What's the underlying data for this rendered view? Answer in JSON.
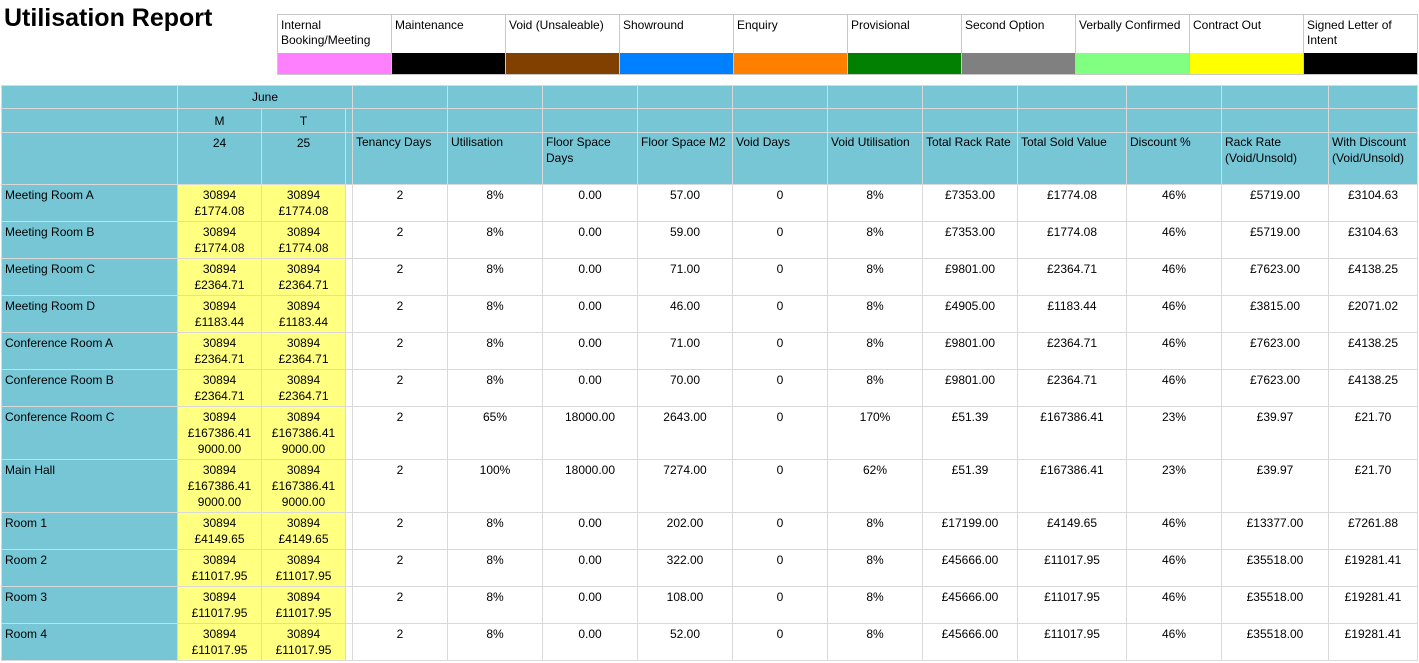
{
  "title": "Utilisation Report",
  "legend": [
    {
      "label": "Internal Booking/Meeting",
      "color": "#ff80ff"
    },
    {
      "label": "Maintenance",
      "color": "#000000"
    },
    {
      "label": "Void (Unsaleable)",
      "color": "#804000"
    },
    {
      "label": "Showround",
      "color": "#0080ff"
    },
    {
      "label": "Enquiry",
      "color": "#ff8000"
    },
    {
      "label": "Provisional",
      "color": "#008000"
    },
    {
      "label": "Second Option",
      "color": "#808080"
    },
    {
      "label": "Verbally Confirmed",
      "color": "#80ff80"
    },
    {
      "label": "Contract Out",
      "color": "#ffff00"
    },
    {
      "label": "Signed Letter of Intent",
      "color": "#000000"
    }
  ],
  "header": {
    "month": "June",
    "days": [
      {
        "weekday": "M",
        "date": "24"
      },
      {
        "weekday": "T",
        "date": "25"
      }
    ],
    "columns": [
      "Tenancy Days",
      "Utilisation",
      "Floor Space Days",
      "Floor Space M2",
      "Void Days",
      "Void Utilisation",
      "Total Rack Rate",
      "Total Sold Value",
      "Discount %",
      "Rack Rate (Void/Unsold)",
      "With Discount (Void/Unsold)"
    ]
  },
  "rows": [
    {
      "room": "Meeting Room A",
      "day": [
        "30894",
        "£1774.08"
      ],
      "values": [
        "2",
        "8%",
        "0.00",
        "57.00",
        "0",
        "8%",
        "£7353.00",
        "£1774.08",
        "46%",
        "£5719.00",
        "£3104.63"
      ]
    },
    {
      "room": "Meeting Room B",
      "day": [
        "30894",
        "£1774.08"
      ],
      "values": [
        "2",
        "8%",
        "0.00",
        "59.00",
        "0",
        "8%",
        "£7353.00",
        "£1774.08",
        "46%",
        "£5719.00",
        "£3104.63"
      ]
    },
    {
      "room": "Meeting Room C",
      "day": [
        "30894",
        "£2364.71"
      ],
      "values": [
        "2",
        "8%",
        "0.00",
        "71.00",
        "0",
        "8%",
        "£9801.00",
        "£2364.71",
        "46%",
        "£7623.00",
        "£4138.25"
      ]
    },
    {
      "room": "Meeting Room D",
      "day": [
        "30894",
        "£1183.44"
      ],
      "values": [
        "2",
        "8%",
        "0.00",
        "46.00",
        "0",
        "8%",
        "£4905.00",
        "£1183.44",
        "46%",
        "£3815.00",
        "£2071.02"
      ]
    },
    {
      "room": "Conference Room A",
      "day": [
        "30894",
        "£2364.71"
      ],
      "values": [
        "2",
        "8%",
        "0.00",
        "71.00",
        "0",
        "8%",
        "£9801.00",
        "£2364.71",
        "46%",
        "£7623.00",
        "£4138.25"
      ]
    },
    {
      "room": "Conference Room B",
      "day": [
        "30894",
        "£2364.71"
      ],
      "values": [
        "2",
        "8%",
        "0.00",
        "70.00",
        "0",
        "8%",
        "£9801.00",
        "£2364.71",
        "46%",
        "£7623.00",
        "£4138.25"
      ]
    },
    {
      "room": "Conference Room C",
      "day": [
        "30894",
        "£167386.41",
        "9000.00"
      ],
      "values": [
        "2",
        "65%",
        "18000.00",
        "2643.00",
        "0",
        "170%",
        "£51.39",
        "£167386.41",
        "23%",
        "£39.97",
        "£21.70"
      ]
    },
    {
      "room": "Main Hall",
      "day": [
        "30894",
        "£167386.41",
        "9000.00"
      ],
      "values": [
        "2",
        "100%",
        "18000.00",
        "7274.00",
        "0",
        "62%",
        "£51.39",
        "£167386.41",
        "23%",
        "£39.97",
        "£21.70"
      ]
    },
    {
      "room": "Room 1",
      "day": [
        "30894",
        "£4149.65"
      ],
      "values": [
        "2",
        "8%",
        "0.00",
        "202.00",
        "0",
        "8%",
        "£17199.00",
        "£4149.65",
        "46%",
        "£13377.00",
        "£7261.88"
      ]
    },
    {
      "room": "Room 2",
      "day": [
        "30894",
        "£11017.95"
      ],
      "values": [
        "2",
        "8%",
        "0.00",
        "322.00",
        "0",
        "8%",
        "£45666.00",
        "£11017.95",
        "46%",
        "£35518.00",
        "£19281.41"
      ]
    },
    {
      "room": "Room 3",
      "day": [
        "30894",
        "£11017.95"
      ],
      "values": [
        "2",
        "8%",
        "0.00",
        "108.00",
        "0",
        "8%",
        "£45666.00",
        "£11017.95",
        "46%",
        "£35518.00",
        "£19281.41"
      ]
    },
    {
      "room": "Room 4",
      "day": [
        "30894",
        "£11017.95"
      ],
      "values": [
        "2",
        "8%",
        "0.00",
        "52.00",
        "0",
        "8%",
        "£45666.00",
        "£11017.95",
        "46%",
        "£35518.00",
        "£19281.41"
      ]
    }
  ]
}
